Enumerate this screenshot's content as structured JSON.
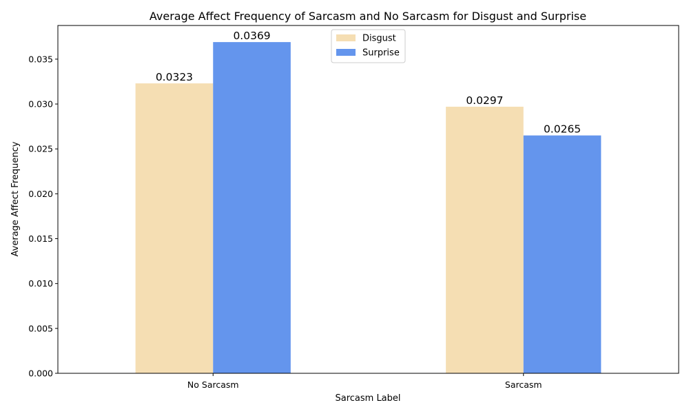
{
  "chart_data": {
    "type": "bar",
    "title": "Average Affect Frequency of Sarcasm and No Sarcasm for Disgust and Surprise",
    "xlabel": "Sarcasm Label",
    "ylabel": "Average Affect Frequency",
    "categories": [
      "No Sarcasm",
      "Sarcasm"
    ],
    "series": [
      {
        "name": "Disgust",
        "color": "#F5DEB3",
        "values": [
          0.0323,
          0.0297
        ],
        "labels": [
          "0.0323",
          "0.0297"
        ]
      },
      {
        "name": "Surprise",
        "color": "#6495ED",
        "values": [
          0.0369,
          0.0265
        ],
        "labels": [
          "0.0369",
          "0.0265"
        ]
      }
    ],
    "ylim": [
      0,
      0.03875
    ],
    "yticks": [
      0.0,
      0.005,
      0.01,
      0.015,
      0.02,
      0.025,
      0.03,
      0.035
    ],
    "ytick_labels": [
      "0.000",
      "0.005",
      "0.010",
      "0.015",
      "0.020",
      "0.025",
      "0.030",
      "0.035"
    ],
    "grid": false,
    "legend_position": "upper center"
  }
}
